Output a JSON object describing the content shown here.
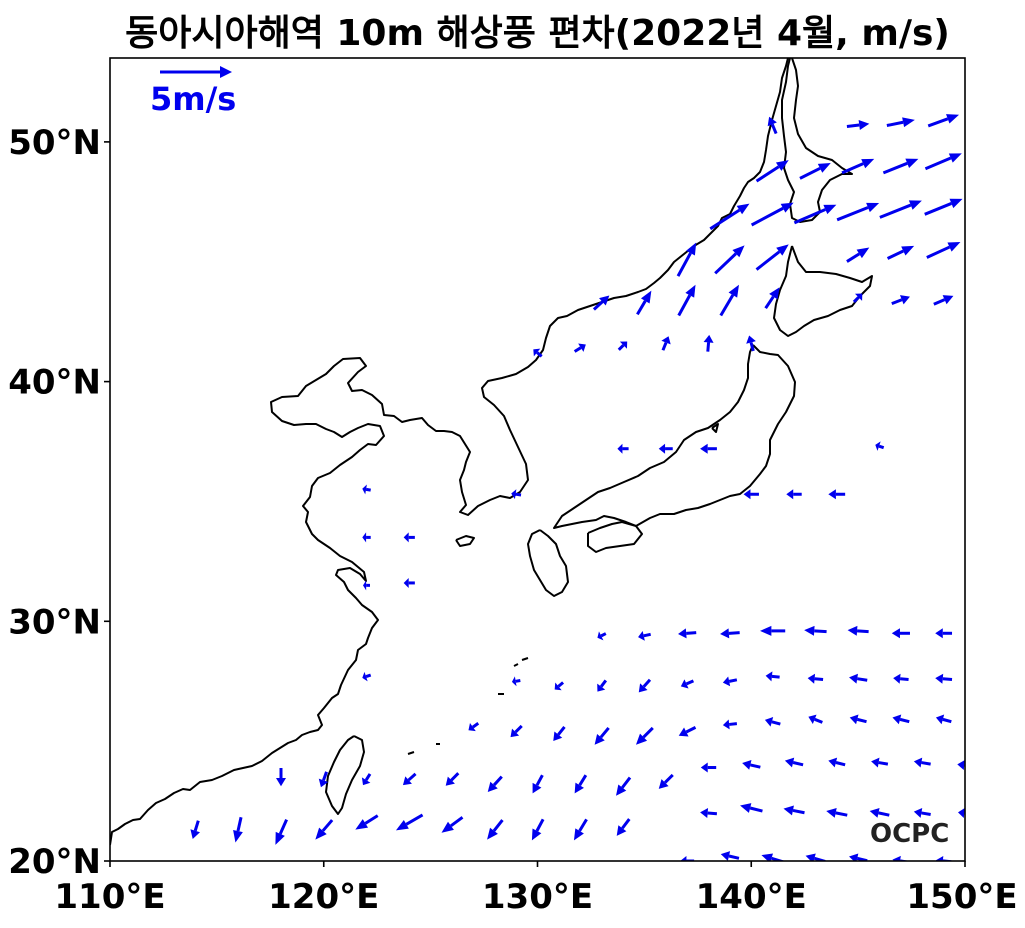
{
  "title": "동아시아해역 10m 해상풍 편차(2022년 4월, m/s)",
  "reference_vector": {
    "label": "5m/s",
    "magnitude": 5
  },
  "logo": "OCPC",
  "colors": {
    "vector": "#0000ee",
    "coast": "#000000",
    "frame": "#000000"
  },
  "chart_data": {
    "type": "vector-field",
    "title": "동아시아해역 10m 해상풍 편차(2022년 4월, m/s)",
    "xlim": [
      110,
      150
    ],
    "ylim": [
      20,
      53.5
    ],
    "x_ticks": [
      110,
      120,
      130,
      140,
      150
    ],
    "x_tick_labels": [
      "110°E",
      "120°E",
      "130°E",
      "140°E",
      "150°E"
    ],
    "y_ticks": [
      20,
      30,
      40,
      50
    ],
    "y_tick_labels": [
      "20°N",
      "30°N",
      "40°N",
      "50°N"
    ],
    "vectors": [
      {
        "lon": 141,
        "lat": 50.7,
        "u": -0.5,
        "v": 1.2
      },
      {
        "lon": 145,
        "lat": 50.7,
        "u": 1.6,
        "v": 0.2
      },
      {
        "lon": 147,
        "lat": 50.8,
        "u": 2.0,
        "v": 0.4
      },
      {
        "lon": 149,
        "lat": 50.9,
        "u": 2.2,
        "v": 0.8
      },
      {
        "lon": 141,
        "lat": 48.8,
        "u": 2.3,
        "v": 1.5
      },
      {
        "lon": 143,
        "lat": 48.8,
        "u": 2.2,
        "v": 1.1
      },
      {
        "lon": 145,
        "lat": 49.0,
        "u": 2.3,
        "v": 1.0
      },
      {
        "lon": 147,
        "lat": 49.0,
        "u": 2.5,
        "v": 1.0
      },
      {
        "lon": 149,
        "lat": 49.2,
        "u": 2.6,
        "v": 1.1
      },
      {
        "lon": 139,
        "lat": 46.9,
        "u": 2.8,
        "v": 1.8
      },
      {
        "lon": 141,
        "lat": 47.0,
        "u": 3.0,
        "v": 1.6
      },
      {
        "lon": 143,
        "lat": 47.0,
        "u": 3.0,
        "v": 1.3
      },
      {
        "lon": 145,
        "lat": 47.1,
        "u": 3.0,
        "v": 1.2
      },
      {
        "lon": 147,
        "lat": 47.2,
        "u": 3.0,
        "v": 1.2
      },
      {
        "lon": 149,
        "lat": 47.3,
        "u": 2.7,
        "v": 1.1
      },
      {
        "lon": 137,
        "lat": 45.1,
        "u": 1.3,
        "v": 2.4
      },
      {
        "lon": 139,
        "lat": 45.1,
        "u": 2.1,
        "v": 2.0
      },
      {
        "lon": 141,
        "lat": 45.2,
        "u": 2.3,
        "v": 1.8
      },
      {
        "lon": 145,
        "lat": 45.3,
        "u": 1.6,
        "v": 1.0
      },
      {
        "lon": 147,
        "lat": 45.4,
        "u": 1.9,
        "v": 0.9
      },
      {
        "lon": 149,
        "lat": 45.5,
        "u": 2.4,
        "v": 1.1
      },
      {
        "lon": 133,
        "lat": 43.3,
        "u": 1.1,
        "v": 1.0
      },
      {
        "lon": 135,
        "lat": 43.3,
        "u": 1.0,
        "v": 1.7
      },
      {
        "lon": 137,
        "lat": 43.4,
        "u": 1.2,
        "v": 2.2
      },
      {
        "lon": 139,
        "lat": 43.4,
        "u": 1.3,
        "v": 2.2
      },
      {
        "lon": 141,
        "lat": 43.5,
        "u": 1.0,
        "v": 1.5
      },
      {
        "lon": 145,
        "lat": 43.5,
        "u": 0.6,
        "v": 0.6
      },
      {
        "lon": 147,
        "lat": 43.4,
        "u": 1.3,
        "v": 0.5
      },
      {
        "lon": 149,
        "lat": 43.4,
        "u": 1.4,
        "v": 0.6
      },
      {
        "lon": 130,
        "lat": 41.2,
        "u": -0.6,
        "v": 0.5
      },
      {
        "lon": 132,
        "lat": 41.4,
        "u": 0.8,
        "v": 0.5
      },
      {
        "lon": 134,
        "lat": 41.5,
        "u": 0.6,
        "v": 0.6
      },
      {
        "lon": 136,
        "lat": 41.6,
        "u": 0.4,
        "v": 1.0
      },
      {
        "lon": 138,
        "lat": 41.6,
        "u": 0.1,
        "v": 1.2
      },
      {
        "lon": 140,
        "lat": 41.6,
        "u": -0.3,
        "v": 1.1
      },
      {
        "lon": 134,
        "lat": 37.2,
        "u": -0.8,
        "v": 0.0
      },
      {
        "lon": 136,
        "lat": 37.2,
        "u": -1.0,
        "v": 0.0
      },
      {
        "lon": 138,
        "lat": 37.2,
        "u": -1.2,
        "v": 0.0
      },
      {
        "lon": 146,
        "lat": 37.3,
        "u": -0.6,
        "v": 0.2
      },
      {
        "lon": 122,
        "lat": 35.5,
        "u": -0.6,
        "v": 0.1
      },
      {
        "lon": 129,
        "lat": 35.3,
        "u": -0.7,
        "v": 0.1
      },
      {
        "lon": 140,
        "lat": 35.3,
        "u": -1.1,
        "v": 0.0
      },
      {
        "lon": 142,
        "lat": 35.3,
        "u": -1.1,
        "v": 0.0
      },
      {
        "lon": 144,
        "lat": 35.3,
        "u": -1.2,
        "v": 0.0
      },
      {
        "lon": 122,
        "lat": 33.5,
        "u": -0.6,
        "v": 0.0
      },
      {
        "lon": 124,
        "lat": 33.5,
        "u": -0.8,
        "v": 0.0
      },
      {
        "lon": 122,
        "lat": 31.5,
        "u": -0.5,
        "v": 0.0
      },
      {
        "lon": 124,
        "lat": 31.6,
        "u": -0.8,
        "v": 0.0
      },
      {
        "lon": 133,
        "lat": 29.4,
        "u": -0.6,
        "v": -0.3
      },
      {
        "lon": 135,
        "lat": 29.4,
        "u": -0.9,
        "v": -0.2
      },
      {
        "lon": 137,
        "lat": 29.5,
        "u": -1.3,
        "v": -0.1
      },
      {
        "lon": 139,
        "lat": 29.5,
        "u": -1.4,
        "v": -0.1
      },
      {
        "lon": 141,
        "lat": 29.6,
        "u": -1.8,
        "v": 0.0
      },
      {
        "lon": 143,
        "lat": 29.6,
        "u": -1.6,
        "v": 0.1
      },
      {
        "lon": 145,
        "lat": 29.6,
        "u": -1.5,
        "v": 0.1
      },
      {
        "lon": 147,
        "lat": 29.5,
        "u": -1.3,
        "v": 0.0
      },
      {
        "lon": 149,
        "lat": 29.5,
        "u": -1.2,
        "v": 0.0
      },
      {
        "lon": 122,
        "lat": 27.7,
        "u": -0.6,
        "v": -0.2
      },
      {
        "lon": 129,
        "lat": 27.5,
        "u": -0.6,
        "v": -0.1
      },
      {
        "lon": 131,
        "lat": 27.3,
        "u": -0.6,
        "v": -0.5
      },
      {
        "lon": 133,
        "lat": 27.3,
        "u": -0.6,
        "v": -0.8
      },
      {
        "lon": 135,
        "lat": 27.3,
        "u": -0.8,
        "v": -0.9
      },
      {
        "lon": 137,
        "lat": 27.4,
        "u": -0.9,
        "v": -0.4
      },
      {
        "lon": 139,
        "lat": 27.5,
        "u": -1.0,
        "v": -0.2
      },
      {
        "lon": 141,
        "lat": 27.7,
        "u": -1.0,
        "v": 0.1
      },
      {
        "lon": 143,
        "lat": 27.6,
        "u": -1.1,
        "v": 0.1
      },
      {
        "lon": 145,
        "lat": 27.6,
        "u": -1.3,
        "v": 0.2
      },
      {
        "lon": 147,
        "lat": 27.6,
        "u": -1.1,
        "v": 0.1
      },
      {
        "lon": 149,
        "lat": 27.6,
        "u": -1.2,
        "v": 0.1
      },
      {
        "lon": 127,
        "lat": 25.6,
        "u": -0.7,
        "v": -0.5
      },
      {
        "lon": 129,
        "lat": 25.4,
        "u": -0.8,
        "v": -0.8
      },
      {
        "lon": 131,
        "lat": 25.3,
        "u": -0.8,
        "v": -1.0
      },
      {
        "lon": 133,
        "lat": 25.2,
        "u": -1.0,
        "v": -1.2
      },
      {
        "lon": 135,
        "lat": 25.2,
        "u": -1.2,
        "v": -1.2
      },
      {
        "lon": 137,
        "lat": 25.4,
        "u": -1.2,
        "v": -0.6
      },
      {
        "lon": 139,
        "lat": 25.7,
        "u": -1.0,
        "v": -0.1
      },
      {
        "lon": 141,
        "lat": 25.8,
        "u": -1.1,
        "v": 0.3
      },
      {
        "lon": 143,
        "lat": 25.9,
        "u": -1.0,
        "v": 0.4
      },
      {
        "lon": 145,
        "lat": 25.9,
        "u": -1.2,
        "v": 0.3
      },
      {
        "lon": 147,
        "lat": 25.9,
        "u": -1.2,
        "v": 0.3
      },
      {
        "lon": 149,
        "lat": 25.9,
        "u": -1.1,
        "v": 0.3
      },
      {
        "lon": 118,
        "lat": 23.5,
        "u": 0.0,
        "v": -1.3
      },
      {
        "lon": 120,
        "lat": 23.4,
        "u": -0.4,
        "v": -1.1
      },
      {
        "lon": 122,
        "lat": 23.4,
        "u": -0.5,
        "v": -0.8
      },
      {
        "lon": 124,
        "lat": 23.4,
        "u": -0.9,
        "v": -0.8
      },
      {
        "lon": 126,
        "lat": 23.4,
        "u": -0.9,
        "v": -0.9
      },
      {
        "lon": 128,
        "lat": 23.2,
        "u": -1.0,
        "v": -1.1
      },
      {
        "lon": 130,
        "lat": 23.2,
        "u": -0.7,
        "v": -1.3
      },
      {
        "lon": 132,
        "lat": 23.2,
        "u": -0.8,
        "v": -1.3
      },
      {
        "lon": 134,
        "lat": 23.1,
        "u": -1.0,
        "v": -1.3
      },
      {
        "lon": 136,
        "lat": 23.3,
        "u": -1.0,
        "v": -1.0
      },
      {
        "lon": 138,
        "lat": 23.9,
        "u": -1.1,
        "v": 0.0
      },
      {
        "lon": 140,
        "lat": 24.0,
        "u": -1.3,
        "v": 0.3
      },
      {
        "lon": 142,
        "lat": 24.1,
        "u": -1.3,
        "v": 0.3
      },
      {
        "lon": 144,
        "lat": 24.1,
        "u": -1.2,
        "v": 0.3
      },
      {
        "lon": 146,
        "lat": 24.1,
        "u": -1.2,
        "v": 0.2
      },
      {
        "lon": 148,
        "lat": 24.1,
        "u": -1.2,
        "v": 0.2
      },
      {
        "lon": 150,
        "lat": 24.0,
        "u": -1.1,
        "v": 0.1
      },
      {
        "lon": 114,
        "lat": 21.3,
        "u": -0.4,
        "v": -1.3
      },
      {
        "lon": 116,
        "lat": 21.3,
        "u": -0.4,
        "v": -1.8
      },
      {
        "lon": 118,
        "lat": 21.2,
        "u": -0.8,
        "v": -1.8
      },
      {
        "lon": 120,
        "lat": 21.3,
        "u": -1.2,
        "v": -1.4
      },
      {
        "lon": 122,
        "lat": 21.6,
        "u": -1.6,
        "v": -1.0
      },
      {
        "lon": 124,
        "lat": 21.6,
        "u": -1.9,
        "v": -1.1
      },
      {
        "lon": 126,
        "lat": 21.5,
        "u": -1.5,
        "v": -1.1
      },
      {
        "lon": 128,
        "lat": 21.3,
        "u": -1.1,
        "v": -1.4
      },
      {
        "lon": 130,
        "lat": 21.3,
        "u": -0.8,
        "v": -1.5
      },
      {
        "lon": 132,
        "lat": 21.3,
        "u": -0.9,
        "v": -1.5
      },
      {
        "lon": 134,
        "lat": 21.4,
        "u": -0.9,
        "v": -1.2
      },
      {
        "lon": 138,
        "lat": 22.0,
        "u": -1.2,
        "v": 0.1
      },
      {
        "lon": 140,
        "lat": 22.2,
        "u": -1.6,
        "v": 0.4
      },
      {
        "lon": 142,
        "lat": 22.1,
        "u": -1.5,
        "v": 0.3
      },
      {
        "lon": 144,
        "lat": 22.0,
        "u": -1.5,
        "v": 0.3
      },
      {
        "lon": 146,
        "lat": 22.0,
        "u": -1.4,
        "v": 0.3
      },
      {
        "lon": 148,
        "lat": 22.0,
        "u": -1.2,
        "v": 0.2
      },
      {
        "lon": 150,
        "lat": 22.0,
        "u": -1.0,
        "v": 0.1
      },
      {
        "lon": 137,
        "lat": 20.0,
        "u": -1.0,
        "v": 0.0
      },
      {
        "lon": 139,
        "lat": 20.2,
        "u": -1.3,
        "v": 0.3
      },
      {
        "lon": 141,
        "lat": 20.1,
        "u": -1.6,
        "v": 0.5
      },
      {
        "lon": 143,
        "lat": 20.1,
        "u": -1.4,
        "v": 0.4
      },
      {
        "lon": 145,
        "lat": 20.1,
        "u": -1.3,
        "v": 0.3
      },
      {
        "lon": 147,
        "lat": 20.0,
        "u": -1.2,
        "v": 0.2
      },
      {
        "lon": 149,
        "lat": 20.0,
        "u": -1.1,
        "v": 0.1
      }
    ]
  }
}
